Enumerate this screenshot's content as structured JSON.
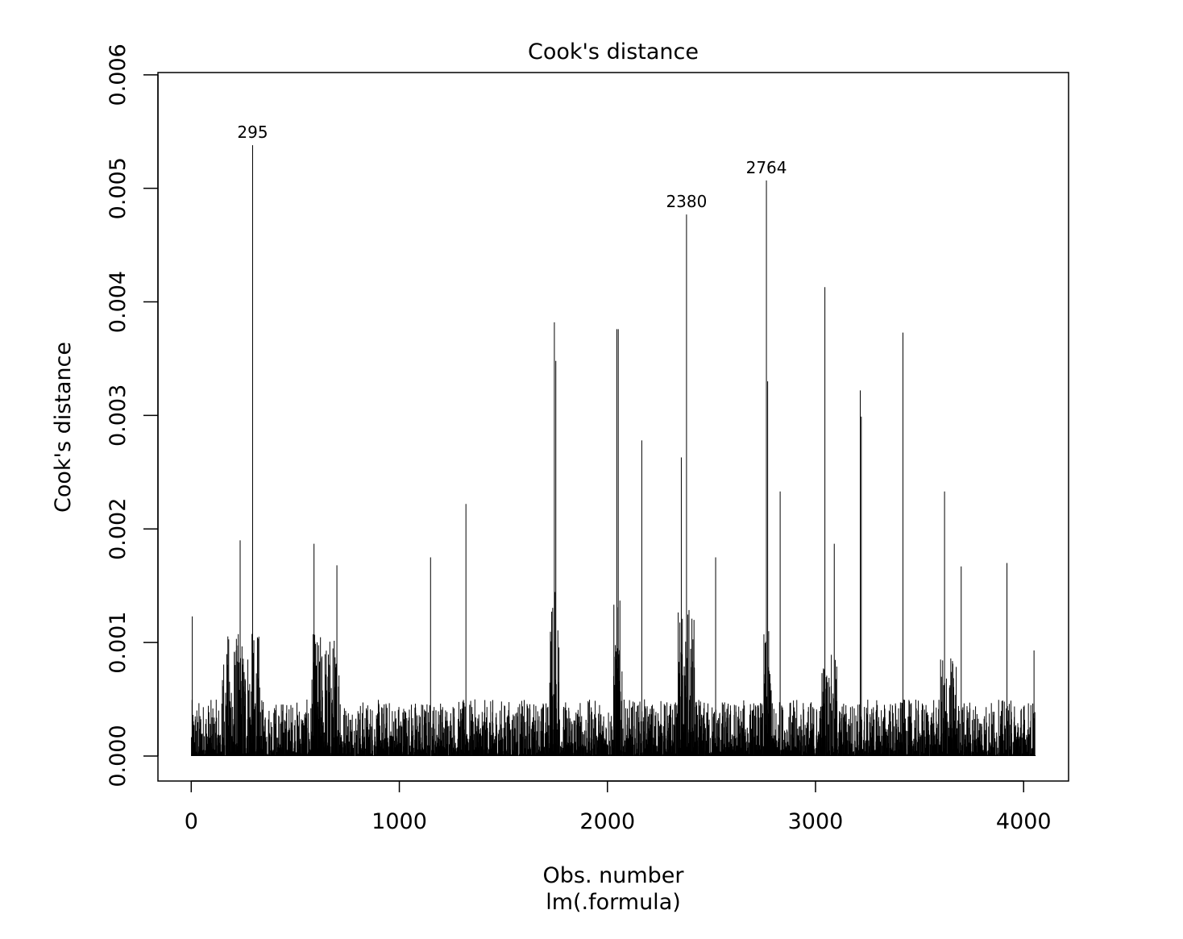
{
  "chart_data": {
    "type": "bar",
    "title": "Cook's distance",
    "xlabel": "Obs. number",
    "sub_label": "lm(.formula)",
    "ylabel": "Cook's distance",
    "xlim": [
      -160,
      4216
    ],
    "ylim": [
      -0.00022,
      0.00602
    ],
    "x_ticks": [
      0,
      1000,
      2000,
      3000,
      4000
    ],
    "x_tick_labels": [
      "0",
      "1000",
      "2000",
      "3000",
      "4000"
    ],
    "y_ticks": [
      0,
      0.001,
      0.002,
      0.003,
      0.004,
      0.005,
      0.006
    ],
    "y_tick_labels": [
      "0.000",
      "0.001",
      "0.002",
      "0.003",
      "0.004",
      "0.005",
      "0.006"
    ],
    "n_obs": 4056,
    "highlighted_points": [
      {
        "label": "295",
        "x": 295,
        "y": 0.00538
      },
      {
        "label": "2380",
        "x": 2380,
        "y": 0.00477
      },
      {
        "label": "2764",
        "x": 2764,
        "y": 0.00507
      }
    ],
    "notable_spikes": [
      {
        "x": 5,
        "y": 0.00123
      },
      {
        "x": 235,
        "y": 0.0019
      },
      {
        "x": 590,
        "y": 0.00187
      },
      {
        "x": 700,
        "y": 0.00168
      },
      {
        "x": 1150,
        "y": 0.00175
      },
      {
        "x": 1320,
        "y": 0.00222
      },
      {
        "x": 1745,
        "y": 0.00382
      },
      {
        "x": 1752,
        "y": 0.00348
      },
      {
        "x": 2045,
        "y": 0.00376
      },
      {
        "x": 2052,
        "y": 0.00376
      },
      {
        "x": 2165,
        "y": 0.00278
      },
      {
        "x": 2355,
        "y": 0.00263
      },
      {
        "x": 2520,
        "y": 0.00175
      },
      {
        "x": 2770,
        "y": 0.0033
      },
      {
        "x": 2830,
        "y": 0.00233
      },
      {
        "x": 3045,
        "y": 0.00413
      },
      {
        "x": 3090,
        "y": 0.00187
      },
      {
        "x": 3215,
        "y": 0.00322
      },
      {
        "x": 3220,
        "y": 0.00299
      },
      {
        "x": 3420,
        "y": 0.00373
      },
      {
        "x": 3620,
        "y": 0.00233
      },
      {
        "x": 3700,
        "y": 0.00167
      },
      {
        "x": 3920,
        "y": 0.0017
      },
      {
        "x": 4050,
        "y": 0.00093
      }
    ],
    "high_regions": [
      {
        "from": 150,
        "to": 330,
        "level": 0.0011
      },
      {
        "from": 580,
        "to": 720,
        "level": 0.0011
      },
      {
        "from": 1720,
        "to": 1770,
        "level": 0.0015
      },
      {
        "from": 2030,
        "to": 2070,
        "level": 0.0014
      },
      {
        "from": 2340,
        "to": 2420,
        "level": 0.0013
      },
      {
        "from": 2750,
        "to": 2790,
        "level": 0.0011
      },
      {
        "from": 3030,
        "to": 3110,
        "level": 0.0009
      },
      {
        "from": 3600,
        "to": 3680,
        "level": 0.0009
      }
    ],
    "typical_level": 0.0005,
    "grid": false,
    "bar_color": "#000000"
  }
}
